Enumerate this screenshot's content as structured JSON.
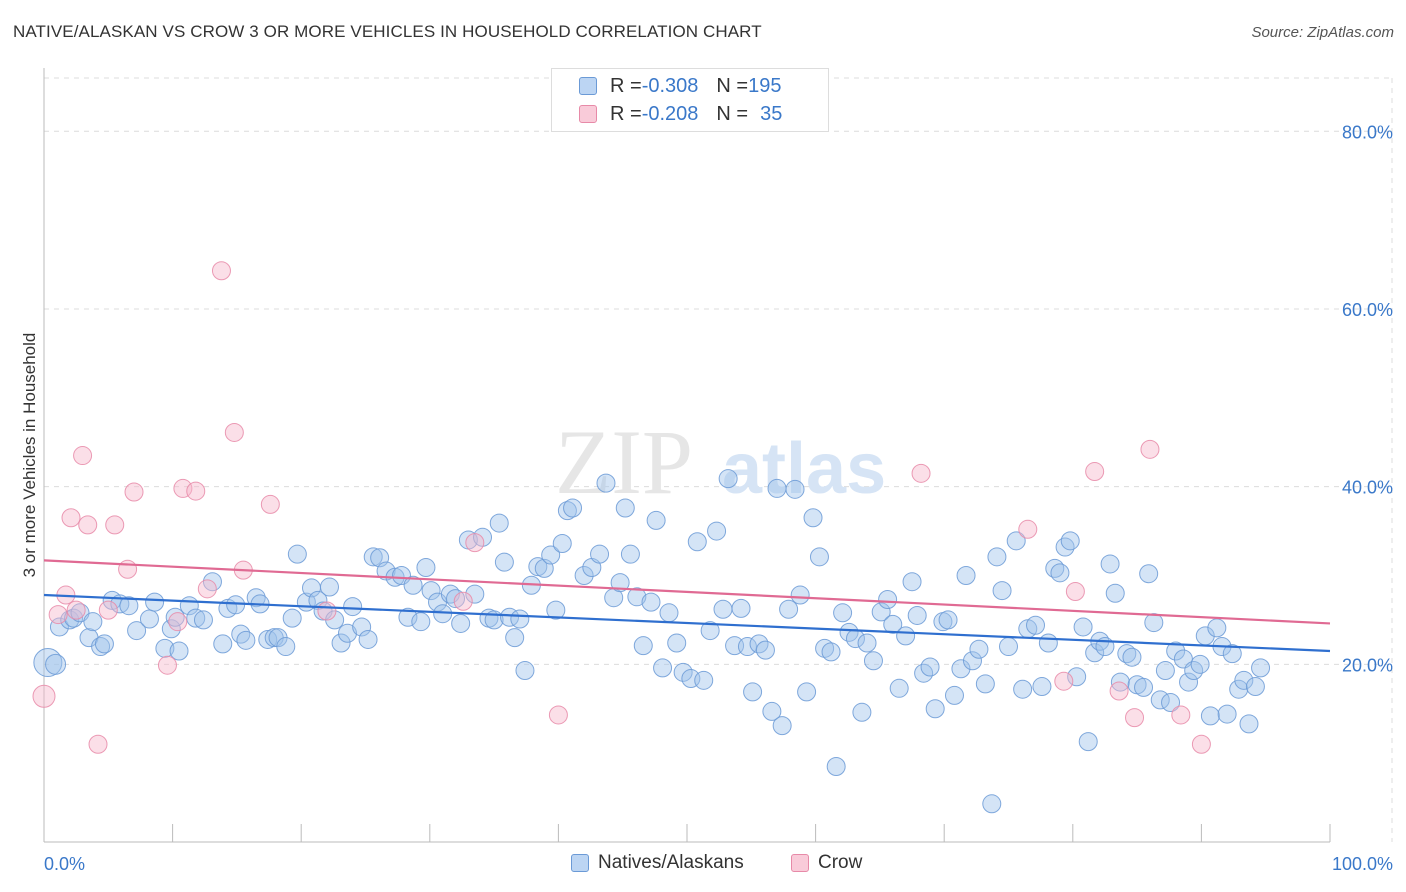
{
  "title": "NATIVE/ALASKAN VS CROW 3 OR MORE VEHICLES IN HOUSEHOLD CORRELATION CHART",
  "source": "Source: ZipAtlas.com",
  "watermark": {
    "zip": "ZIP",
    "atlas": "atlas"
  },
  "legend": {
    "rows": [
      {
        "r_label": "R = ",
        "r_value": "-0.308",
        "n_label": "N = ",
        "n_value": "195"
      },
      {
        "r_label": "R = ",
        "r_value": "-0.208",
        "n_label": "N = ",
        "n_value": "35"
      }
    ]
  },
  "chart_data": {
    "type": "scatter",
    "title": "NATIVE/ALASKAN VS CROW 3 OR MORE VEHICLES IN HOUSEHOLD CORRELATION CHART",
    "xlabel": "",
    "ylabel": "3 or more Vehicles in Household",
    "xlim": [
      0,
      100
    ],
    "ylim": [
      0,
      86
    ],
    "x_tick_labels": [
      "0.0%",
      "100.0%"
    ],
    "y_ticks": [
      20,
      40,
      60,
      80
    ],
    "y_tick_labels": [
      "20.0%",
      "40.0%",
      "60.0%",
      "80.0%"
    ],
    "grid": true,
    "legend_position": "top-center",
    "series": [
      {
        "name": "Natives/Alaskans",
        "color": "#9fc3ec",
        "edge": "#6b9ad6",
        "line_color": "#2f6fcf",
        "trend": [
          {
            "x": 0,
            "y": 27.8
          },
          {
            "x": 100,
            "y": 21.5
          }
        ],
        "points": [
          [
            0.3,
            20.2
          ],
          [
            0.9,
            20.0
          ],
          [
            1.2,
            24.2
          ],
          [
            2.0,
            25.0
          ],
          [
            2.3,
            25.2
          ],
          [
            2.8,
            25.8
          ],
          [
            3.5,
            23.0
          ],
          [
            3.8,
            24.8
          ],
          [
            4.4,
            22.0
          ],
          [
            4.7,
            22.3
          ],
          [
            5.3,
            27.2
          ],
          [
            5.9,
            26.8
          ],
          [
            6.6,
            26.6
          ],
          [
            7.2,
            23.8
          ],
          [
            8.2,
            25.1
          ],
          [
            8.6,
            27.0
          ],
          [
            9.4,
            21.8
          ],
          [
            9.9,
            24.0
          ],
          [
            10.2,
            25.3
          ],
          [
            10.5,
            21.5
          ],
          [
            11.3,
            26.6
          ],
          [
            11.8,
            25.2
          ],
          [
            12.4,
            25.0
          ],
          [
            13.1,
            29.3
          ],
          [
            13.9,
            22.3
          ],
          [
            14.3,
            26.3
          ],
          [
            14.9,
            26.7
          ],
          [
            15.3,
            23.4
          ],
          [
            15.7,
            22.7
          ],
          [
            16.5,
            27.5
          ],
          [
            16.8,
            26.8
          ],
          [
            17.4,
            22.8
          ],
          [
            17.9,
            23.0
          ],
          [
            18.2,
            23.0
          ],
          [
            18.8,
            22.0
          ],
          [
            19.3,
            25.2
          ],
          [
            19.7,
            32.4
          ],
          [
            20.4,
            27.0
          ],
          [
            20.8,
            28.6
          ],
          [
            21.3,
            27.2
          ],
          [
            21.7,
            26.0
          ],
          [
            22.2,
            28.7
          ],
          [
            22.6,
            25.0
          ],
          [
            23.1,
            22.4
          ],
          [
            23.6,
            23.5
          ],
          [
            24.0,
            26.5
          ],
          [
            24.7,
            24.2
          ],
          [
            25.2,
            22.8
          ],
          [
            25.6,
            32.1
          ],
          [
            26.1,
            32.0
          ],
          [
            26.6,
            30.5
          ],
          [
            27.3,
            29.8
          ],
          [
            27.8,
            30.0
          ],
          [
            28.3,
            25.3
          ],
          [
            28.7,
            28.9
          ],
          [
            29.3,
            24.8
          ],
          [
            29.7,
            30.9
          ],
          [
            30.1,
            28.3
          ],
          [
            30.6,
            27.0
          ],
          [
            31.0,
            25.7
          ],
          [
            31.6,
            27.9
          ],
          [
            32.0,
            27.4
          ],
          [
            32.4,
            24.6
          ],
          [
            33.0,
            34.0
          ],
          [
            33.5,
            27.9
          ],
          [
            34.1,
            34.3
          ],
          [
            34.6,
            25.2
          ],
          [
            35.0,
            25.0
          ],
          [
            35.4,
            35.9
          ],
          [
            35.8,
            31.5
          ],
          [
            36.2,
            25.3
          ],
          [
            36.6,
            23.0
          ],
          [
            37.0,
            25.1
          ],
          [
            37.4,
            19.3
          ],
          [
            37.9,
            28.9
          ],
          [
            38.4,
            31.0
          ],
          [
            38.9,
            30.8
          ],
          [
            39.4,
            32.3
          ],
          [
            39.8,
            26.1
          ],
          [
            40.3,
            33.6
          ],
          [
            40.7,
            37.3
          ],
          [
            41.1,
            37.6
          ],
          [
            42.0,
            30.0
          ],
          [
            42.6,
            30.9
          ],
          [
            43.2,
            32.4
          ],
          [
            43.7,
            40.4
          ],
          [
            44.3,
            27.5
          ],
          [
            44.8,
            29.2
          ],
          [
            45.2,
            37.6
          ],
          [
            45.6,
            32.4
          ],
          [
            46.1,
            27.6
          ],
          [
            46.6,
            22.1
          ],
          [
            47.2,
            27.0
          ],
          [
            47.6,
            36.2
          ],
          [
            48.1,
            19.6
          ],
          [
            48.6,
            25.8
          ],
          [
            49.2,
            22.4
          ],
          [
            49.7,
            19.1
          ],
          [
            50.3,
            18.4
          ],
          [
            50.8,
            33.8
          ],
          [
            51.3,
            18.2
          ],
          [
            51.8,
            23.8
          ],
          [
            52.3,
            35.0
          ],
          [
            52.8,
            26.2
          ],
          [
            53.2,
            40.9
          ],
          [
            53.7,
            22.1
          ],
          [
            54.2,
            26.3
          ],
          [
            54.7,
            22.0
          ],
          [
            55.1,
            16.9
          ],
          [
            55.6,
            22.3
          ],
          [
            56.1,
            21.6
          ],
          [
            56.6,
            14.7
          ],
          [
            57.0,
            39.8
          ],
          [
            57.4,
            13.1
          ],
          [
            57.9,
            26.2
          ],
          [
            58.4,
            39.7
          ],
          [
            58.8,
            27.8
          ],
          [
            59.3,
            16.9
          ],
          [
            59.8,
            36.5
          ],
          [
            60.3,
            32.1
          ],
          [
            60.7,
            21.8
          ],
          [
            61.2,
            21.4
          ],
          [
            61.6,
            8.5
          ],
          [
            62.1,
            25.8
          ],
          [
            62.6,
            23.6
          ],
          [
            63.1,
            22.9
          ],
          [
            63.6,
            14.6
          ],
          [
            64.0,
            22.4
          ],
          [
            64.5,
            20.4
          ],
          [
            65.1,
            25.9
          ],
          [
            65.6,
            27.3
          ],
          [
            66.0,
            24.5
          ],
          [
            66.5,
            17.3
          ],
          [
            67.0,
            23.2
          ],
          [
            67.5,
            29.3
          ],
          [
            67.9,
            25.5
          ],
          [
            68.4,
            19.0
          ],
          [
            68.9,
            19.7
          ],
          [
            69.3,
            15.0
          ],
          [
            69.9,
            24.8
          ],
          [
            70.3,
            25.0
          ],
          [
            70.8,
            16.5
          ],
          [
            71.3,
            19.5
          ],
          [
            71.7,
            30.0
          ],
          [
            72.2,
            20.4
          ],
          [
            72.7,
            21.7
          ],
          [
            73.2,
            17.8
          ],
          [
            73.7,
            4.3
          ],
          [
            74.1,
            32.1
          ],
          [
            74.5,
            28.3
          ],
          [
            75.0,
            22.0
          ],
          [
            75.6,
            33.9
          ],
          [
            76.1,
            17.2
          ],
          [
            76.5,
            24.0
          ],
          [
            77.1,
            24.4
          ],
          [
            77.6,
            17.5
          ],
          [
            78.1,
            22.4
          ],
          [
            78.6,
            30.8
          ],
          [
            79.0,
            30.3
          ],
          [
            79.4,
            33.2
          ],
          [
            79.8,
            33.9
          ],
          [
            80.3,
            18.6
          ],
          [
            80.8,
            24.2
          ],
          [
            81.2,
            11.3
          ],
          [
            81.7,
            21.3
          ],
          [
            82.1,
            22.6
          ],
          [
            82.5,
            22.0
          ],
          [
            82.9,
            31.3
          ],
          [
            83.3,
            28.0
          ],
          [
            83.7,
            18.0
          ],
          [
            84.2,
            21.2
          ],
          [
            84.6,
            20.8
          ],
          [
            85.0,
            17.7
          ],
          [
            85.5,
            17.4
          ],
          [
            85.9,
            30.2
          ],
          [
            86.3,
            24.7
          ],
          [
            86.8,
            16.0
          ],
          [
            87.2,
            19.3
          ],
          [
            87.6,
            15.7
          ],
          [
            88.0,
            21.5
          ],
          [
            88.6,
            20.6
          ],
          [
            89.0,
            18.0
          ],
          [
            89.4,
            19.3
          ],
          [
            89.9,
            20.0
          ],
          [
            90.3,
            23.2
          ],
          [
            90.7,
            14.2
          ],
          [
            91.2,
            24.1
          ],
          [
            91.6,
            22.0
          ],
          [
            92.0,
            14.4
          ],
          [
            92.4,
            21.2
          ],
          [
            92.9,
            17.2
          ],
          [
            93.3,
            18.2
          ],
          [
            93.7,
            13.3
          ],
          [
            94.2,
            17.5
          ],
          [
            94.6,
            19.6
          ]
        ]
      },
      {
        "name": "Crow",
        "color": "#f7b8cb",
        "edge": "#e78aa8",
        "line_color": "#e06a93",
        "trend": [
          {
            "x": 0,
            "y": 31.7
          },
          {
            "x": 100,
            "y": 24.6
          }
        ],
        "points": [
          [
            0.0,
            16.4
          ],
          [
            1.1,
            25.6
          ],
          [
            1.7,
            27.8
          ],
          [
            2.1,
            36.5
          ],
          [
            2.5,
            26.1
          ],
          [
            3.0,
            43.5
          ],
          [
            3.4,
            35.7
          ],
          [
            4.2,
            11.0
          ],
          [
            5.0,
            26.1
          ],
          [
            5.5,
            35.7
          ],
          [
            6.5,
            30.7
          ],
          [
            7.0,
            39.4
          ],
          [
            9.6,
            19.9
          ],
          [
            10.4,
            24.8
          ],
          [
            10.8,
            39.8
          ],
          [
            11.8,
            39.5
          ],
          [
            12.7,
            28.5
          ],
          [
            13.8,
            64.3
          ],
          [
            14.8,
            46.1
          ],
          [
            15.5,
            30.6
          ],
          [
            17.6,
            38.0
          ],
          [
            22.0,
            26.0
          ],
          [
            32.6,
            27.1
          ],
          [
            33.5,
            33.7
          ],
          [
            40.0,
            14.3
          ],
          [
            68.2,
            41.5
          ],
          [
            76.5,
            35.2
          ],
          [
            79.3,
            18.1
          ],
          [
            80.2,
            28.2
          ],
          [
            81.7,
            41.7
          ],
          [
            83.6,
            17.0
          ],
          [
            84.8,
            14.0
          ],
          [
            86.0,
            44.2
          ],
          [
            88.4,
            14.3
          ],
          [
            90.0,
            11.0
          ]
        ]
      }
    ]
  },
  "bottom_legend": [
    {
      "label": "Natives/Alaskans"
    },
    {
      "label": "Crow"
    }
  ]
}
